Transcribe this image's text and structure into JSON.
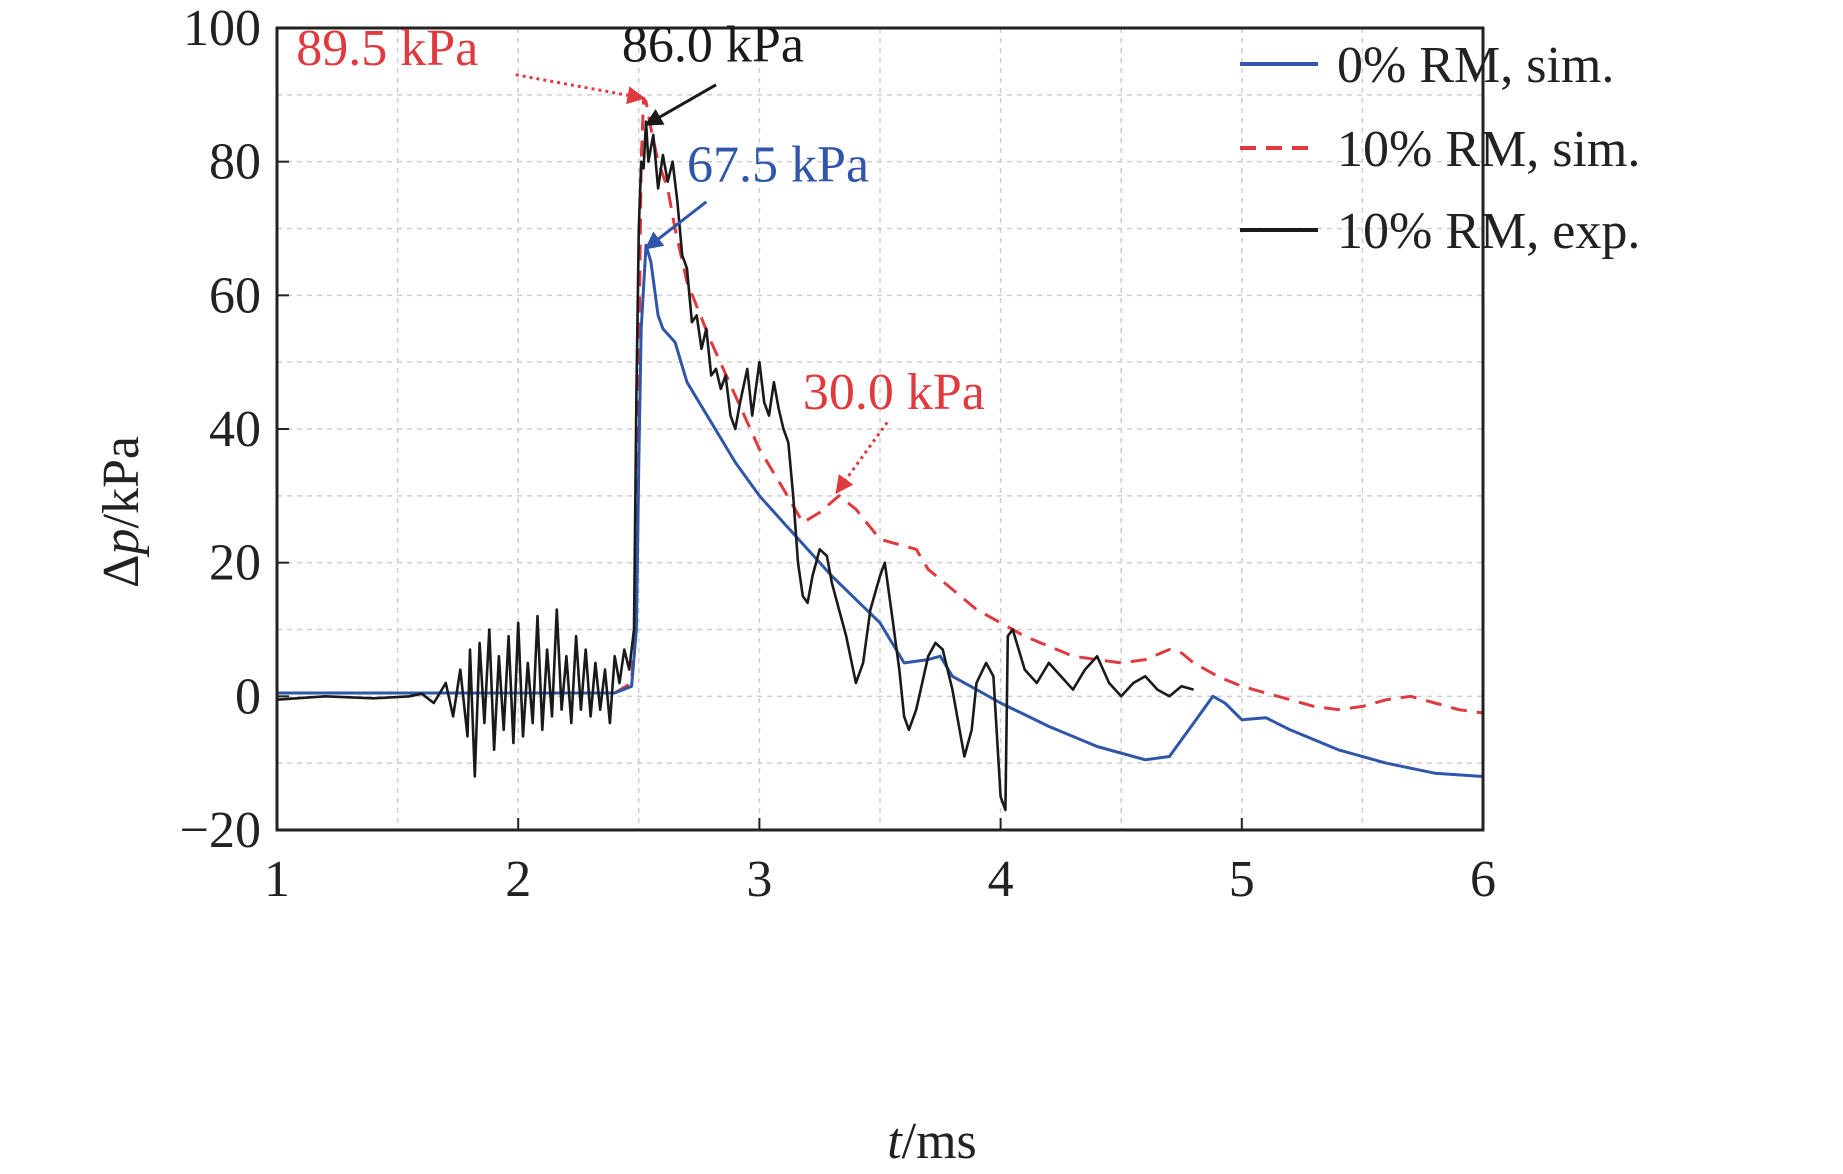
{
  "chart_data": {
    "type": "line",
    "xlabel_var": "t",
    "xlabel_unit": "/ms",
    "ylabel_var": "p",
    "ylabel_prefix": "Δ",
    "ylabel_unit": "/kPa",
    "xlim": [
      1,
      6
    ],
    "ylim": [
      -20,
      100
    ],
    "xticks": [
      1,
      2,
      3,
      4,
      5,
      6
    ],
    "xtick_labels": [
      "1",
      "2",
      "3",
      "4",
      "5",
      "6"
    ],
    "xgrid": [
      1.5,
      2,
      2.5,
      3,
      3.5,
      4,
      4.5,
      5,
      5.5
    ],
    "yticks": [
      -20,
      0,
      20,
      40,
      60,
      80,
      100
    ],
    "ytick_labels": [
      "−20",
      "0",
      "20",
      "40",
      "60",
      "80",
      "100"
    ],
    "ygrid": [
      -10,
      0,
      10,
      20,
      30,
      40,
      50,
      60,
      70,
      80,
      90
    ],
    "grid": true,
    "legend_position": "top-right",
    "colors": {
      "blue": "#2f56a8",
      "red": "#e0393e",
      "black": "#1a1a1a"
    },
    "series": [
      {
        "name": "0% RM, sim.",
        "color": "#2f56a8",
        "style": "solid",
        "points": [
          [
            1.0,
            0.5
          ],
          [
            1.5,
            0.5
          ],
          [
            2.0,
            0.5
          ],
          [
            2.4,
            0.5
          ],
          [
            2.47,
            1.5
          ],
          [
            2.49,
            10
          ],
          [
            2.5,
            35
          ],
          [
            2.51,
            55
          ],
          [
            2.53,
            67.5
          ],
          [
            2.55,
            65
          ],
          [
            2.58,
            57
          ],
          [
            2.6,
            55
          ],
          [
            2.65,
            53
          ],
          [
            2.7,
            47
          ],
          [
            2.8,
            41
          ],
          [
            2.9,
            35
          ],
          [
            3.0,
            30
          ],
          [
            3.1,
            26
          ],
          [
            3.2,
            22
          ],
          [
            3.3,
            18
          ],
          [
            3.4,
            14.5
          ],
          [
            3.5,
            11
          ],
          [
            3.6,
            5
          ],
          [
            3.7,
            5.5
          ],
          [
            3.75,
            6
          ],
          [
            3.8,
            3
          ],
          [
            3.9,
            1
          ],
          [
            4.0,
            -1
          ],
          [
            4.2,
            -4.5
          ],
          [
            4.4,
            -7.5
          ],
          [
            4.6,
            -9.5
          ],
          [
            4.7,
            -9
          ],
          [
            4.8,
            -4
          ],
          [
            4.88,
            0
          ],
          [
            4.93,
            -1
          ],
          [
            5.0,
            -3.5
          ],
          [
            5.1,
            -3.2
          ],
          [
            5.2,
            -5
          ],
          [
            5.3,
            -6.5
          ],
          [
            5.4,
            -8
          ],
          [
            5.6,
            -10
          ],
          [
            5.8,
            -11.5
          ],
          [
            6.0,
            -12
          ]
        ]
      },
      {
        "name": "10% RM, sim.",
        "color": "#e0393e",
        "style": "dashed",
        "points": [
          [
            1.0,
            0.5
          ],
          [
            1.5,
            0.5
          ],
          [
            2.0,
            0.5
          ],
          [
            2.4,
            0.5
          ],
          [
            2.47,
            2
          ],
          [
            2.49,
            15
          ],
          [
            2.5,
            50
          ],
          [
            2.51,
            80
          ],
          [
            2.52,
            89.5
          ],
          [
            2.53,
            89
          ],
          [
            2.55,
            85
          ],
          [
            2.58,
            80
          ],
          [
            2.62,
            76
          ],
          [
            2.65,
            70
          ],
          [
            2.7,
            62
          ],
          [
            2.8,
            53
          ],
          [
            2.9,
            45
          ],
          [
            3.0,
            37
          ],
          [
            3.1,
            31
          ],
          [
            3.18,
            26
          ],
          [
            3.25,
            27.5
          ],
          [
            3.33,
            30
          ],
          [
            3.4,
            28
          ],
          [
            3.5,
            23.5
          ],
          [
            3.6,
            22.5
          ],
          [
            3.65,
            22
          ],
          [
            3.7,
            19
          ],
          [
            3.8,
            16
          ],
          [
            3.9,
            13
          ],
          [
            4.0,
            11
          ],
          [
            4.1,
            9
          ],
          [
            4.2,
            7.5
          ],
          [
            4.3,
            6
          ],
          [
            4.4,
            5.5
          ],
          [
            4.5,
            5
          ],
          [
            4.6,
            5.5
          ],
          [
            4.7,
            7
          ],
          [
            4.75,
            6.5
          ],
          [
            4.8,
            5
          ],
          [
            4.9,
            3
          ],
          [
            5.0,
            1.5
          ],
          [
            5.1,
            0.5
          ],
          [
            5.2,
            -0.5
          ],
          [
            5.3,
            -1.5
          ],
          [
            5.4,
            -2
          ],
          [
            5.5,
            -1.5
          ],
          [
            5.6,
            -0.5
          ],
          [
            5.7,
            0
          ],
          [
            5.8,
            -1
          ],
          [
            5.9,
            -2
          ],
          [
            6.0,
            -2.5
          ]
        ]
      },
      {
        "name": "10% RM, exp.",
        "color": "#1a1a1a",
        "style": "solid",
        "points": [
          [
            1.0,
            -0.5
          ],
          [
            1.2,
            0
          ],
          [
            1.4,
            -0.3
          ],
          [
            1.55,
            0
          ],
          [
            1.6,
            0.4
          ],
          [
            1.65,
            -1
          ],
          [
            1.7,
            2
          ],
          [
            1.73,
            -3
          ],
          [
            1.76,
            4
          ],
          [
            1.79,
            -6
          ],
          [
            1.8,
            7
          ],
          [
            1.82,
            -12
          ],
          [
            1.84,
            8
          ],
          [
            1.86,
            -4
          ],
          [
            1.88,
            10
          ],
          [
            1.9,
            -8
          ],
          [
            1.92,
            6
          ],
          [
            1.94,
            -5
          ],
          [
            1.96,
            9
          ],
          [
            1.98,
            -7
          ],
          [
            2.0,
            11
          ],
          [
            2.02,
            -6
          ],
          [
            2.04,
            5
          ],
          [
            2.06,
            -4
          ],
          [
            2.08,
            12
          ],
          [
            2.1,
            -5
          ],
          [
            2.12,
            7
          ],
          [
            2.14,
            -3
          ],
          [
            2.16,
            13
          ],
          [
            2.18,
            -2
          ],
          [
            2.2,
            6
          ],
          [
            2.22,
            -4
          ],
          [
            2.24,
            9
          ],
          [
            2.26,
            -2
          ],
          [
            2.28,
            7
          ],
          [
            2.3,
            -3
          ],
          [
            2.32,
            5
          ],
          [
            2.34,
            -2
          ],
          [
            2.36,
            4
          ],
          [
            2.38,
            -4
          ],
          [
            2.4,
            6
          ],
          [
            2.42,
            2
          ],
          [
            2.44,
            7
          ],
          [
            2.46,
            4
          ],
          [
            2.48,
            10
          ],
          [
            2.49,
            45
          ],
          [
            2.5,
            70
          ],
          [
            2.51,
            80
          ],
          [
            2.52,
            79
          ],
          [
            2.53,
            86
          ],
          [
            2.54,
            80
          ],
          [
            2.56,
            84
          ],
          [
            2.58,
            76
          ],
          [
            2.6,
            81
          ],
          [
            2.62,
            77
          ],
          [
            2.64,
            80
          ],
          [
            2.66,
            74
          ],
          [
            2.68,
            66
          ],
          [
            2.7,
            64
          ],
          [
            2.72,
            56
          ],
          [
            2.74,
            57
          ],
          [
            2.76,
            52
          ],
          [
            2.78,
            55
          ],
          [
            2.8,
            48
          ],
          [
            2.82,
            49
          ],
          [
            2.84,
            46
          ],
          [
            2.86,
            48
          ],
          [
            2.88,
            42
          ],
          [
            2.9,
            40
          ],
          [
            2.92,
            44
          ],
          [
            2.95,
            49
          ],
          [
            2.97,
            42
          ],
          [
            3.0,
            50
          ],
          [
            3.02,
            44
          ],
          [
            3.04,
            42
          ],
          [
            3.06,
            47
          ],
          [
            3.08,
            43
          ],
          [
            3.1,
            40
          ],
          [
            3.12,
            38
          ],
          [
            3.14,
            30
          ],
          [
            3.16,
            20
          ],
          [
            3.18,
            15
          ],
          [
            3.2,
            14
          ],
          [
            3.22,
            18
          ],
          [
            3.25,
            22
          ],
          [
            3.28,
            21
          ],
          [
            3.3,
            17
          ],
          [
            3.33,
            13
          ],
          [
            3.36,
            9
          ],
          [
            3.4,
            2
          ],
          [
            3.43,
            5
          ],
          [
            3.46,
            13
          ],
          [
            3.5,
            18
          ],
          [
            3.52,
            20
          ],
          [
            3.55,
            12
          ],
          [
            3.58,
            4
          ],
          [
            3.6,
            -3
          ],
          [
            3.62,
            -5
          ],
          [
            3.65,
            -2
          ],
          [
            3.7,
            6
          ],
          [
            3.73,
            8
          ],
          [
            3.76,
            7
          ],
          [
            3.8,
            1
          ],
          [
            3.83,
            -5
          ],
          [
            3.85,
            -9
          ],
          [
            3.88,
            -5
          ],
          [
            3.9,
            2
          ],
          [
            3.94,
            5
          ],
          [
            3.97,
            3
          ],
          [
            4.0,
            -15
          ],
          [
            4.02,
            -17
          ],
          [
            4.03,
            9
          ],
          [
            4.05,
            10
          ],
          [
            4.1,
            4
          ],
          [
            4.15,
            2
          ],
          [
            4.2,
            5
          ],
          [
            4.25,
            3
          ],
          [
            4.3,
            1
          ],
          [
            4.35,
            4
          ],
          [
            4.4,
            6
          ],
          [
            4.45,
            2
          ],
          [
            4.5,
            0
          ],
          [
            4.55,
            2
          ],
          [
            4.6,
            3
          ],
          [
            4.65,
            1
          ],
          [
            4.7,
            0
          ],
          [
            4.75,
            1.5
          ],
          [
            4.8,
            1
          ]
        ]
      }
    ],
    "annotations": [
      {
        "text": "89.5 kPa",
        "color": "#e0393e",
        "point_x": 2.52,
        "point_y": 89.5,
        "text_x": 1.08,
        "text_y": 94.5,
        "tail_x": 1.99,
        "tail_y": 93,
        "anchor": "start",
        "arrow": "dotted"
      },
      {
        "text": "86.0 kPa",
        "color": "#1a1a1a",
        "point_x": 2.53,
        "point_y": 85.5,
        "text_x": 2.43,
        "text_y": 95,
        "tail_x": 2.82,
        "tail_y": 91.5,
        "anchor": "start",
        "arrow": "solid"
      },
      {
        "text": "67.5 kPa",
        "color": "#2f56a8",
        "point_x": 2.53,
        "point_y": 67,
        "text_x": 2.7,
        "text_y": 77,
        "tail_x": 2.78,
        "tail_y": 74,
        "anchor": "start",
        "arrow": "solid"
      },
      {
        "text": "30.0 kPa",
        "color": "#e0393e",
        "point_x": 3.32,
        "point_y": 30.5,
        "text_x": 3.18,
        "text_y": 43,
        "tail_x": 3.53,
        "tail_y": 41,
        "anchor": "start",
        "arrow": "dotted"
      }
    ]
  }
}
